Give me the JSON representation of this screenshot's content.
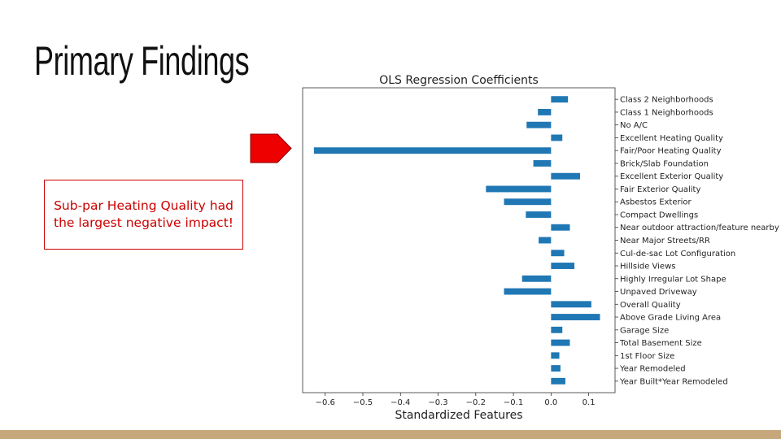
{
  "slide": {
    "title": "Primary Findings",
    "callout": "Sub-par Heating Quality had the largest negative impact!"
  },
  "colors": {
    "bar": "#1f77b4",
    "callout": "#cc0000",
    "arrow_fill": "#ee0000",
    "bottom_band": "#c6a87c"
  },
  "chart_data": {
    "type": "bar",
    "orientation": "horizontal",
    "title": "OLS Regression Coefficients",
    "xlabel": "Standardized Features",
    "ylabel": "",
    "xlim": [
      -0.66,
      0.17
    ],
    "xticks": [
      -0.6,
      -0.5,
      -0.4,
      -0.3,
      -0.2,
      -0.1,
      0.0,
      0.1
    ],
    "xtick_labels": [
      "−0.6",
      "−0.5",
      "−0.4",
      "−0.3",
      "−0.2",
      "−0.1",
      "0.0",
      "0.1"
    ],
    "grid": false,
    "categories": [
      "Class 2 Neighborhoods",
      "Class 1 Neighborhoods",
      "No A/C",
      "Excellent Heating Quality",
      "Fair/Poor Heating Quality",
      "Brick/Slab Foundation",
      "Excellent Exterior Quality",
      "Fair Exterior Quality",
      "Asbestos Exterior",
      "Compact Dwellings",
      "Near outdoor attraction/feature nearby",
      "Near Major Streets/RR",
      "Cul-de-sac Lot Configuration",
      "Hillside Views",
      "Highly Irregular Lot Shape",
      "Unpaved Driveway",
      "Overall Quality",
      "Above Grade Living Area",
      "Garage Size",
      "Total Basement Size",
      "1st Floor Size",
      "Year Remodeled",
      "Year Built*Year Remodeled"
    ],
    "values": [
      0.045,
      -0.035,
      -0.065,
      0.03,
      -0.63,
      -0.047,
      0.077,
      -0.173,
      -0.125,
      -0.067,
      0.05,
      -0.033,
      0.035,
      0.062,
      -0.077,
      -0.125,
      0.107,
      0.13,
      0.03,
      0.05,
      0.022,
      0.025,
      0.038
    ]
  }
}
